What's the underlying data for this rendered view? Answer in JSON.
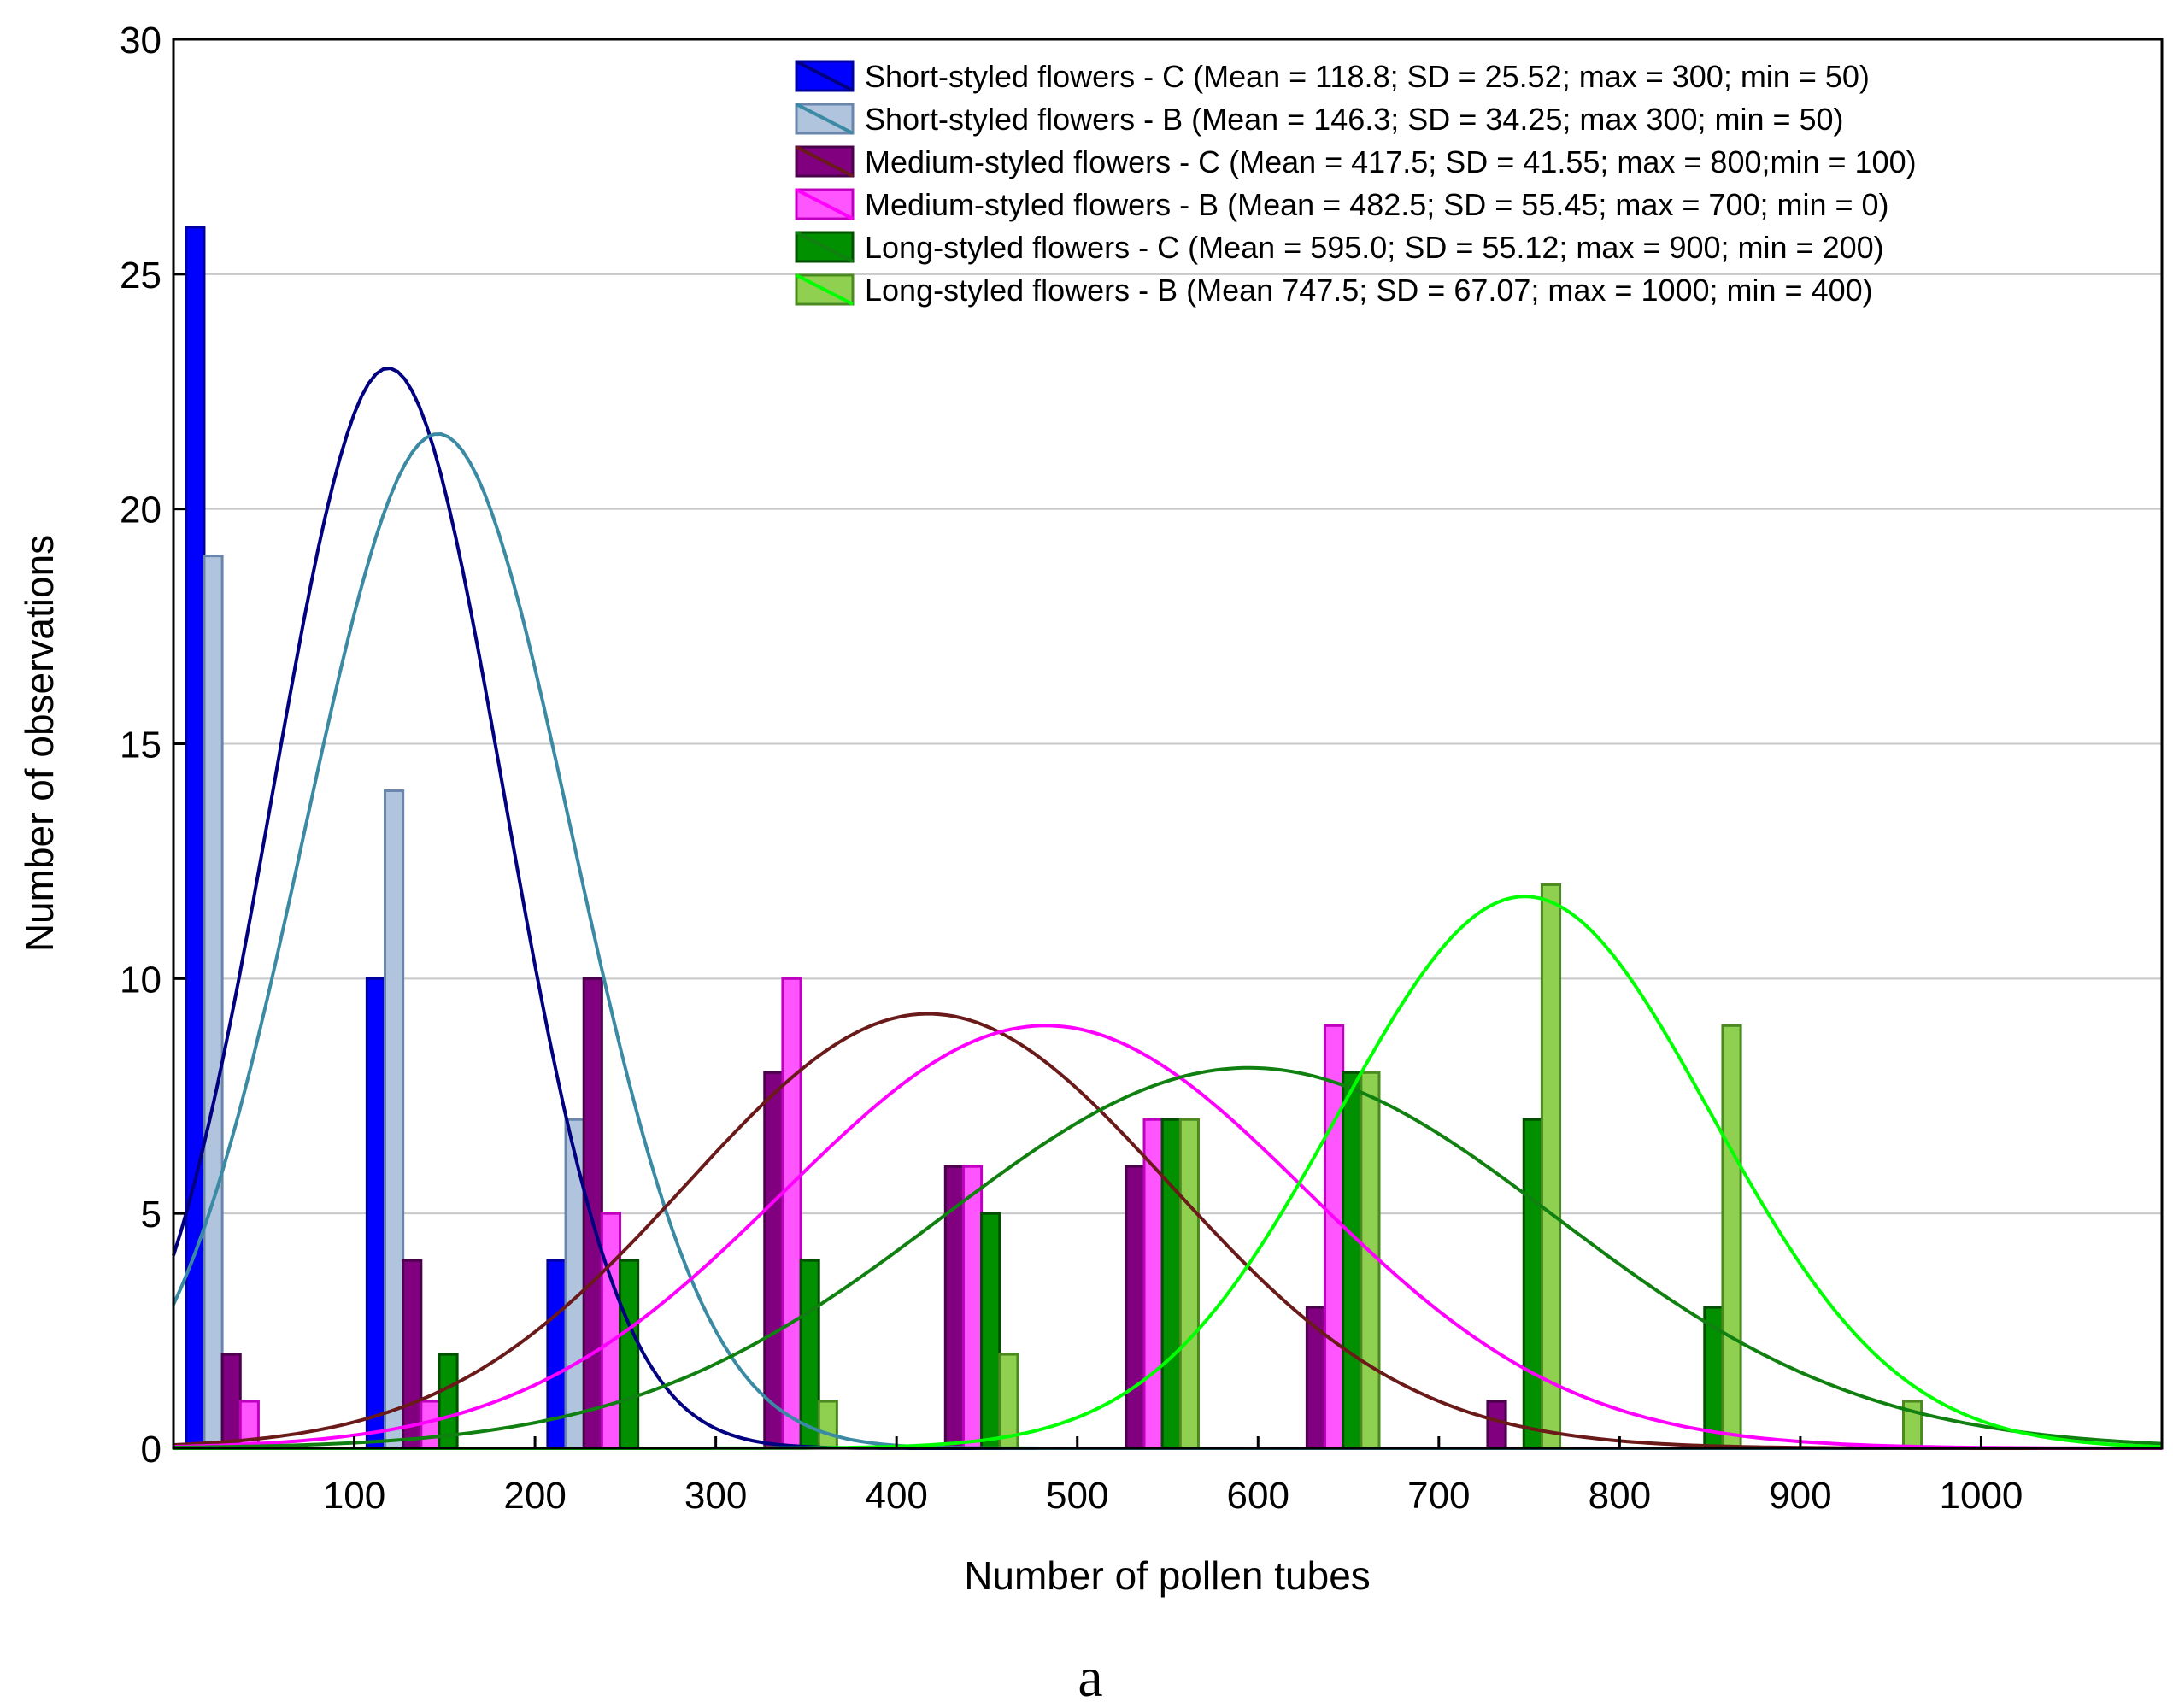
{
  "chart_data": {
    "type": "bar",
    "title": "",
    "xlabel": "Number of pollen tubes",
    "ylabel": "Number of observations",
    "caption": "a",
    "xlim": [
      0,
      1100
    ],
    "ylim": [
      0,
      30
    ],
    "xticks": [
      100,
      200,
      300,
      400,
      500,
      600,
      700,
      800,
      900,
      1000
    ],
    "yticks": [
      0,
      5,
      10,
      15,
      20,
      25,
      30
    ],
    "grid": "horizontal",
    "legend_position": "top-right",
    "bin_centers": [
      50,
      150,
      250,
      350,
      450,
      550,
      650,
      750,
      850,
      950
    ],
    "series": [
      {
        "name": "Short-styled flowers - C (Mean = 118.8; SD = 25.52; max = 300; min = 50)",
        "bar_color": "#0000ff",
        "bar_edge": "#0000a0",
        "curve_color": "#000080",
        "values": [
          26,
          10,
          4,
          0,
          0,
          0,
          0,
          0,
          0,
          0
        ],
        "curve": {
          "mean": 118.8,
          "peak": 23.0
        }
      },
      {
        "name": "Short-styled flowers - B (Mean = 146.3; SD = 34.25; max 300; min = 50)",
        "bar_color": "#b0c4de",
        "bar_edge": "#6a86ad",
        "curve_color": "#3a8aa3",
        "values": [
          19,
          14,
          7,
          0,
          0,
          0,
          0,
          0,
          0,
          0
        ],
        "curve": {
          "mean": 146.3,
          "peak": 21.6
        }
      },
      {
        "name": "Medium-styled flowers - C (Mean = 417.5; SD = 41.55; max = 800;min = 100)",
        "bar_color": "#800080",
        "bar_edge": "#4a004a",
        "curve_color": "#6b1a1a",
        "values": [
          2,
          4,
          10,
          8,
          6,
          6,
          3,
          1,
          0,
          0
        ],
        "curve": {
          "mean": 417.5,
          "peak": 9.25
        }
      },
      {
        "name": "Medium-styled flowers - B (Mean = 482.5; SD = 55.45; max = 700; min = 0)",
        "bar_color": "#ff55ff",
        "bar_edge": "#c000c0",
        "curve_color": "#ff00ff",
        "values": [
          1,
          1,
          5,
          10,
          6,
          7,
          9,
          0,
          0,
          0
        ],
        "curve": {
          "mean": 482.5,
          "peak": 9.0
        }
      },
      {
        "name": "Long-styled flowers - C (Mean = 595.0; SD = 55.12; max = 900; min = 200)",
        "bar_color": "#009000",
        "bar_edge": "#005000",
        "curve_color": "#108010",
        "values": [
          0,
          2,
          4,
          4,
          5,
          7,
          8,
          7,
          3,
          0
        ],
        "curve": {
          "mean": 595.0,
          "peak": 8.1
        }
      },
      {
        "name": "Long-styled flowers - B (Mean 747.5; SD = 67.07; max = 1000; min = 400)",
        "bar_color": "#90d050",
        "bar_edge": "#4a8a20",
        "curve_color": "#00ff00",
        "values": [
          0,
          0,
          0,
          1,
          2,
          7,
          8,
          12,
          9,
          1
        ],
        "curve": {
          "mean": 747.5,
          "peak": 11.75
        }
      }
    ]
  }
}
